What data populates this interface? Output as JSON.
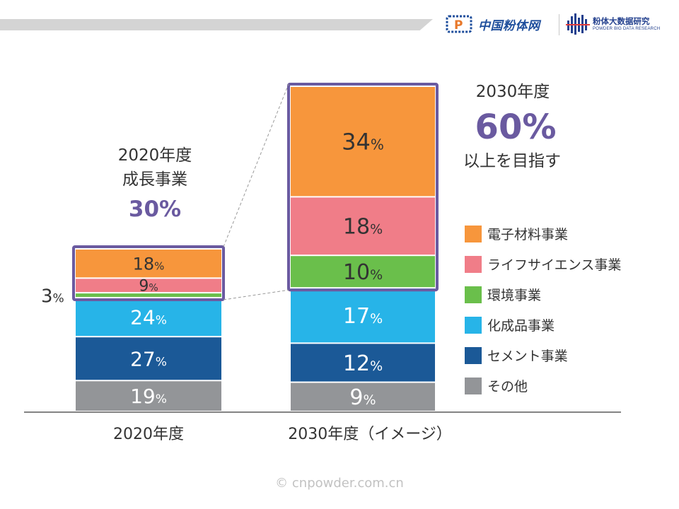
{
  "header": {
    "brand1_name": "中国粉体网",
    "brand1_logo_letter": "P",
    "brand2_name": "粉体大数据研究",
    "brand2_subtitle": "POWDER BIG DATA RESEARCH",
    "colors": {
      "banner_bar": "#d4d4d4",
      "brand_blue": "#1e4e9c",
      "brand_orange": "#e8782a"
    }
  },
  "chart_data": {
    "type": "bar",
    "stacked": true,
    "categories": [
      "2020年度",
      "2030年度（イメージ）"
    ],
    "series": [
      {
        "name": "その他",
        "color": "#939598",
        "values": [
          19,
          9
        ]
      },
      {
        "name": "セメント事業",
        "color": "#1b5997",
        "values": [
          27,
          12
        ]
      },
      {
        "name": "化成品事業",
        "color": "#27b4e8",
        "values": [
          24,
          17
        ]
      },
      {
        "name": "環境事業",
        "color": "#6abf4b",
        "values": [
          3,
          10
        ]
      },
      {
        "name": "ライフサイエンス事業",
        "color": "#f07d88",
        "values": [
          9,
          18
        ]
      },
      {
        "name": "電子材料事業",
        "color": "#f7963c",
        "values": [
          18,
          34
        ]
      }
    ],
    "data_labels": [
      [
        "19%",
        "27%",
        "24%",
        "3%",
        "9%",
        "18%"
      ],
      [
        "9%",
        "12%",
        "17%",
        "10%",
        "18%",
        "34%"
      ]
    ],
    "legend_order": [
      "電子材料事業",
      "ライフサイエンス事業",
      "環境事業",
      "化成品事業",
      "セメント事業",
      "その他"
    ],
    "legend_position": "right",
    "highlight_series": [
      "環境事業",
      "ライフサイエンス事業",
      "電子材料事業"
    ],
    "highlight_color": "#6a5aa0",
    "annotations": {
      "a2020_line1": "2020年度",
      "a2020_line2": "成長事業",
      "a2020_value": "30%",
      "a2030_line1": "2030年度",
      "a2030_value": "60%",
      "a2030_line3": "以上を目指す"
    },
    "grid": false
  },
  "watermark": "© cnpowder.com.cn"
}
